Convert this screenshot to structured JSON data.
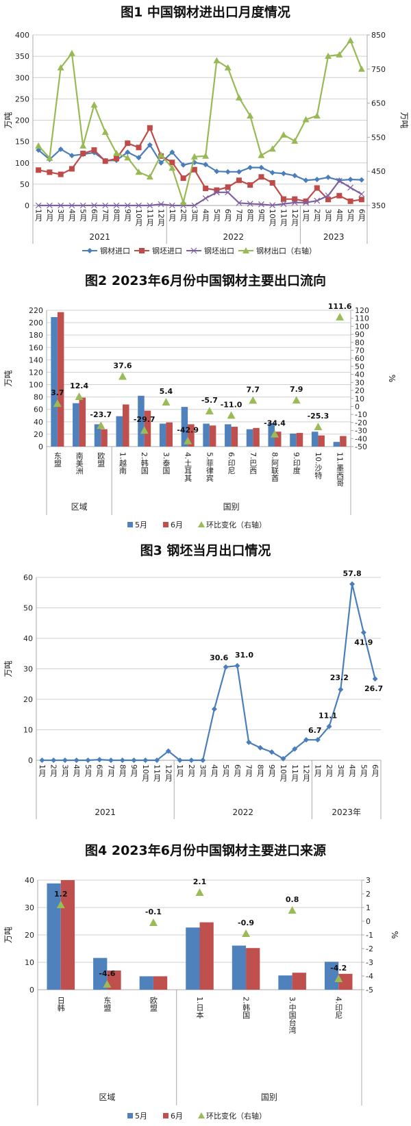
{
  "chart_data": [
    {
      "type": "line",
      "title": "图1 中国钢材进出口月度情况",
      "ylabel": "万吨",
      "y2label": "万吨",
      "ylim": [
        0,
        400
      ],
      "y2lim": [
        350,
        850
      ],
      "yticks": [
        0,
        50,
        100,
        150,
        200,
        250,
        300,
        350,
        400
      ],
      "y2ticks": [
        350,
        450,
        550,
        650,
        750,
        850
      ],
      "grid": true,
      "legend": "bottom",
      "categories": [
        "1月",
        "2月",
        "3月",
        "4月",
        "5月",
        "6月",
        "7月",
        "8月",
        "9月",
        "10月",
        "11月",
        "12月",
        "1月",
        "2月",
        "3月",
        "4月",
        "5月",
        "6月",
        "7月",
        "8月",
        "9月",
        "10月",
        "11月",
        "12月",
        "1月",
        "2月",
        "3月",
        "4月",
        "5月",
        "6月"
      ],
      "groups": [
        {
          "label": "2021",
          "span": 12
        },
        {
          "label": "2022",
          "span": 12
        },
        {
          "label": "2023",
          "span": 6
        }
      ],
      "series": [
        {
          "name": "钢材进口",
          "color": "#4a7ebb",
          "marker": "diamond",
          "axis": "left",
          "values": [
            130,
            108,
            132,
            117,
            120,
            124,
            105,
            106,
            125,
            112,
            142,
            100,
            125,
            95,
            101,
            96,
            80,
            79,
            79,
            89,
            89,
            77,
            75,
            70,
            59,
            61,
            66,
            59,
            61,
            60
          ]
        },
        {
          "name": "钢坯进口",
          "color": "#be4b48",
          "marker": "square",
          "axis": "left",
          "values": [
            83,
            78,
            73,
            86,
            122,
            130,
            104,
            110,
            146,
            136,
            182,
            116,
            101,
            64,
            84,
            40,
            36,
            43,
            59,
            48,
            67,
            53,
            15,
            15,
            10,
            41,
            14,
            23,
            10,
            14
          ]
        },
        {
          "name": "钢坯出口",
          "color": "#7d60a0",
          "marker": "x",
          "axis": "left",
          "values": [
            0,
            0,
            0,
            0,
            0,
            0.2,
            0,
            0,
            0,
            0,
            0,
            3.0,
            0,
            0,
            0,
            16.8,
            30.6,
            31.0,
            5.9,
            4.1,
            2.7,
            0.5,
            3.7,
            6.7,
            6.7,
            11.1,
            23.2,
            57.8,
            41.9,
            26.7
          ]
        },
        {
          "name": "钢材出口（右轴）",
          "color": "#98b954",
          "marker": "triangle",
          "axis": "right",
          "values": [
            525,
            489,
            754,
            796,
            525,
            645,
            565,
            503,
            490,
            448,
            434,
            498,
            460,
            359,
            493,
            495,
            775,
            754,
            666,
            613,
            497,
            516,
            557,
            539,
            602,
            613,
            788,
            792,
            834,
            750
          ]
        }
      ]
    },
    {
      "type": "bar",
      "title": "图2 2023年6月份中国钢材主要出口流向",
      "ylabel": "万吨",
      "y2label": "%",
      "ylim": [
        0,
        220
      ],
      "y2lim": [
        -50,
        120
      ],
      "yticks": [
        0,
        20,
        40,
        60,
        80,
        100,
        120,
        140,
        160,
        180,
        200,
        220
      ],
      "y2ticks": [
        -50,
        -40,
        -30,
        -20,
        -10,
        0,
        10,
        20,
        30,
        40,
        50,
        60,
        70,
        80,
        90,
        100,
        110,
        120
      ],
      "grid": true,
      "legend": "bottom",
      "categories": [
        "东盟",
        "南美洲",
        "欧盟",
        "1.越南",
        "2.韩国",
        "3.泰国",
        "4.土耳其",
        "5.菲律宾",
        "6.印尼",
        "7.巴西",
        "8.阿联酋",
        "9.印度",
        "10.沙特",
        "11.墨西哥"
      ],
      "groups": [
        {
          "label": "区域",
          "span": 3
        },
        {
          "label": "国别",
          "span": 11
        }
      ],
      "series": [
        {
          "name": "5月",
          "color": "#4f81bd",
          "axis": "left",
          "values": [
            209,
            70,
            36,
            49,
            82,
            37,
            64,
            37,
            36,
            28,
            38,
            21,
            24,
            7.5
          ]
        },
        {
          "name": "6月",
          "color": "#c0504d",
          "axis": "left",
          "values": [
            217,
            79,
            28,
            68,
            58,
            39,
            36,
            34,
            32,
            30,
            24,
            22,
            18,
            17
          ]
        },
        {
          "name": "环比变化（右轴）",
          "color": "#9bbb59",
          "marker": "triangle",
          "axis": "right",
          "values": [
            3.7,
            12.4,
            -23.7,
            37.6,
            -29.7,
            5.4,
            -42.9,
            -5.7,
            -11.0,
            7.7,
            -34.4,
            7.9,
            -25.3,
            111.6
          ],
          "labels": [
            "3.7",
            "12.4",
            "-23.7",
            "37.6",
            "-29.7",
            "5.4",
            "-42.9",
            "-5.7",
            "-11.0",
            "7.7",
            "-34.4",
            "7.9",
            "-25.3",
            "111.6"
          ]
        }
      ]
    },
    {
      "type": "line",
      "title": "图3 钢坯当月出口情况",
      "ylabel": "万吨",
      "ylim": [
        0,
        60
      ],
      "yticks": [
        0,
        10,
        20,
        30,
        40,
        50,
        60
      ],
      "grid": true,
      "categories": [
        "1月",
        "2月",
        "3月",
        "4月",
        "5月",
        "6月",
        "7月",
        "8月",
        "9月",
        "10月",
        "11月",
        "12月",
        "1月",
        "2月",
        "3月",
        "4月",
        "5月",
        "6月",
        "7月",
        "8月",
        "9月",
        "10月",
        "11月",
        "12月",
        "1月",
        "2月",
        "3月",
        "4月",
        "5月",
        "6月"
      ],
      "groups": [
        {
          "label": "2021",
          "span": 12
        },
        {
          "label": "2022",
          "span": 12
        },
        {
          "label": "2023年",
          "span": 6
        }
      ],
      "series": [
        {
          "color": "#4a7ebb",
          "marker": "diamond",
          "axis": "left",
          "values": [
            0,
            0,
            0,
            0,
            0,
            0.2,
            0,
            0,
            0,
            0,
            0,
            3.0,
            0,
            0,
            0,
            16.8,
            30.6,
            31.0,
            5.9,
            4.1,
            2.7,
            0.5,
            3.7,
            6.7,
            6.7,
            11.1,
            23.2,
            57.8,
            41.9,
            26.7
          ],
          "labels": [
            null,
            null,
            null,
            null,
            null,
            null,
            null,
            null,
            null,
            null,
            null,
            null,
            null,
            null,
            null,
            null,
            "30.6",
            "31.0",
            null,
            null,
            null,
            null,
            null,
            null,
            "6.7",
            "11.1",
            "23.2",
            "57.8",
            "41.9",
            "26.7"
          ]
        }
      ]
    },
    {
      "type": "bar",
      "title": "图4 2023年6月份中国钢材主要进口来源",
      "ylabel": "万吨",
      "y2label": "%",
      "ylim": [
        0,
        40
      ],
      "y2lim": [
        -5,
        3
      ],
      "yticks": [
        0,
        10,
        20,
        30,
        40
      ],
      "y2ticks": [
        -5,
        -4,
        -3,
        -2,
        -1,
        0,
        1,
        2,
        3
      ],
      "grid": true,
      "legend": "bottom",
      "categories": [
        "日韩",
        "东盟",
        "欧盟",
        "1.日本",
        "2.韩国",
        "3.中国台湾",
        "4.印尼"
      ],
      "groups": [
        {
          "label": "区域",
          "span": 3
        },
        {
          "label": "国别",
          "span": 4
        }
      ],
      "series": [
        {
          "name": "5月",
          "color": "#4f81bd",
          "axis": "left",
          "values": [
            38.8,
            11.6,
            4.9,
            22.7,
            16.1,
            5.2,
            10.2
          ]
        },
        {
          "name": "6月",
          "color": "#c0504d",
          "axis": "left",
          "values": [
            40,
            7.0,
            4.9,
            24.6,
            15.2,
            6.2,
            5.8
          ]
        },
        {
          "name": "环比变化（右轴）",
          "color": "#9bbb59",
          "marker": "triangle",
          "axis": "right",
          "values": [
            1.2,
            -4.6,
            -0.1,
            2.1,
            -0.9,
            0.8,
            -4.2
          ],
          "labels": [
            "1.2",
            "-4.6",
            "-0.1",
            "2.1",
            "-0.9",
            "0.8",
            "-4.2"
          ]
        }
      ]
    }
  ]
}
